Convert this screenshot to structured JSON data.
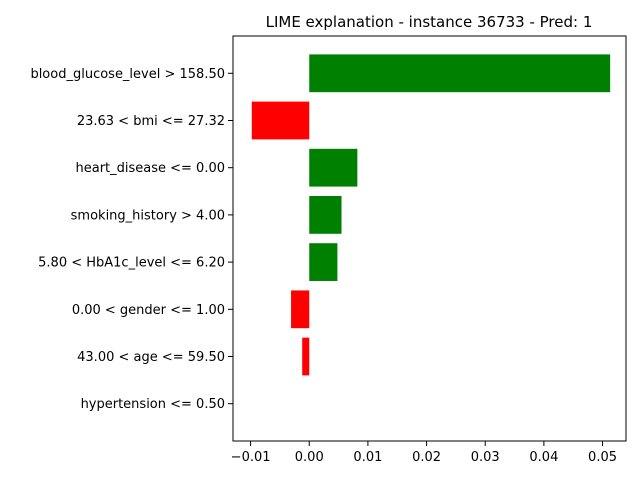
{
  "chart_data": {
    "type": "bar",
    "orientation": "horizontal",
    "title": "LIME explanation - instance 36733 - Pred: 1",
    "xlabel": "",
    "ylabel": "",
    "xlim": [
      -0.013,
      0.054
    ],
    "xticks": [
      -0.01,
      0.0,
      0.01,
      0.02,
      0.03,
      0.04,
      0.05
    ],
    "xtick_labels": [
      "−0.01",
      "0.00",
      "0.01",
      "0.02",
      "0.03",
      "0.04",
      "0.05"
    ],
    "grid": false,
    "legend": "none",
    "colors": {
      "positive": "#008000",
      "negative": "#ff0000"
    },
    "categories": [
      "blood_glucose_level > 158.50",
      "23.63 < bmi <= 27.32",
      "heart_disease <= 0.00",
      "smoking_history > 4.00",
      "5.80 < HbA1c_level <= 6.20",
      "0.00 < gender <= 1.00",
      "43.00 < age <= 59.50",
      "hypertension <= 0.50"
    ],
    "values": [
      0.0513,
      -0.0098,
      0.0082,
      0.0055,
      0.0048,
      -0.0031,
      -0.0012,
      0.0
    ]
  }
}
